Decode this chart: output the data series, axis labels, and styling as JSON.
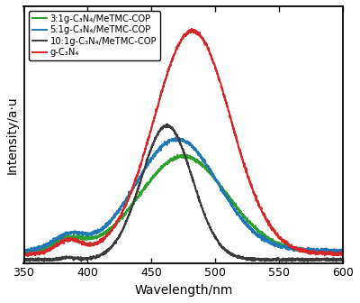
{
  "xlabel": "Wavelength/nm",
  "ylabel": "Intensity/a·u",
  "xlim": [
    350,
    600
  ],
  "ylim": [
    0.0,
    1.15
  ],
  "x_ticks": [
    350,
    400,
    450,
    500,
    550,
    600
  ],
  "legend_labels": [
    "3:1g-C₃N₄/MeTMC-COP",
    "5:1g-C₃N₄/MeTMC-COP",
    "10:1g-C₃N₄/MeTMC-COP",
    "g-C₃N₄"
  ],
  "line_colors": [
    "#2ca02c",
    "#1f77b4",
    "#3a3a3a",
    "#d62728"
  ],
  "background_color": "#ffffff",
  "linewidth": 1.4
}
